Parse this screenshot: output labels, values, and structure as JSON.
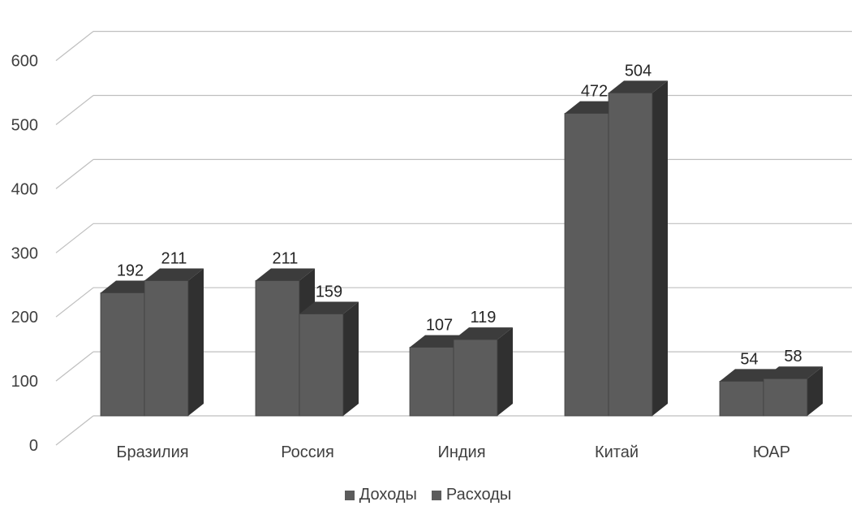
{
  "chart_data": {
    "type": "bar",
    "categories": [
      "Бразилия",
      "Россия",
      "Индия",
      "Китай",
      "ЮАР"
    ],
    "series": [
      {
        "name": "Доходы",
        "values": [
          192,
          211,
          107,
          472,
          54
        ]
      },
      {
        "name": "Расходы",
        "values": [
          211,
          159,
          119,
          504,
          58
        ]
      }
    ],
    "title": "",
    "xlabel": "",
    "ylabel": "",
    "ylim": [
      0,
      600
    ],
    "yticks": [
      0,
      100,
      200,
      300,
      400,
      500,
      600
    ],
    "grid": true,
    "legend_position": "bottom",
    "colors": {
      "front": "#5c5c5c",
      "side": "#303030",
      "top": "#3c3c3c",
      "grid": "#bfbfbf"
    }
  }
}
